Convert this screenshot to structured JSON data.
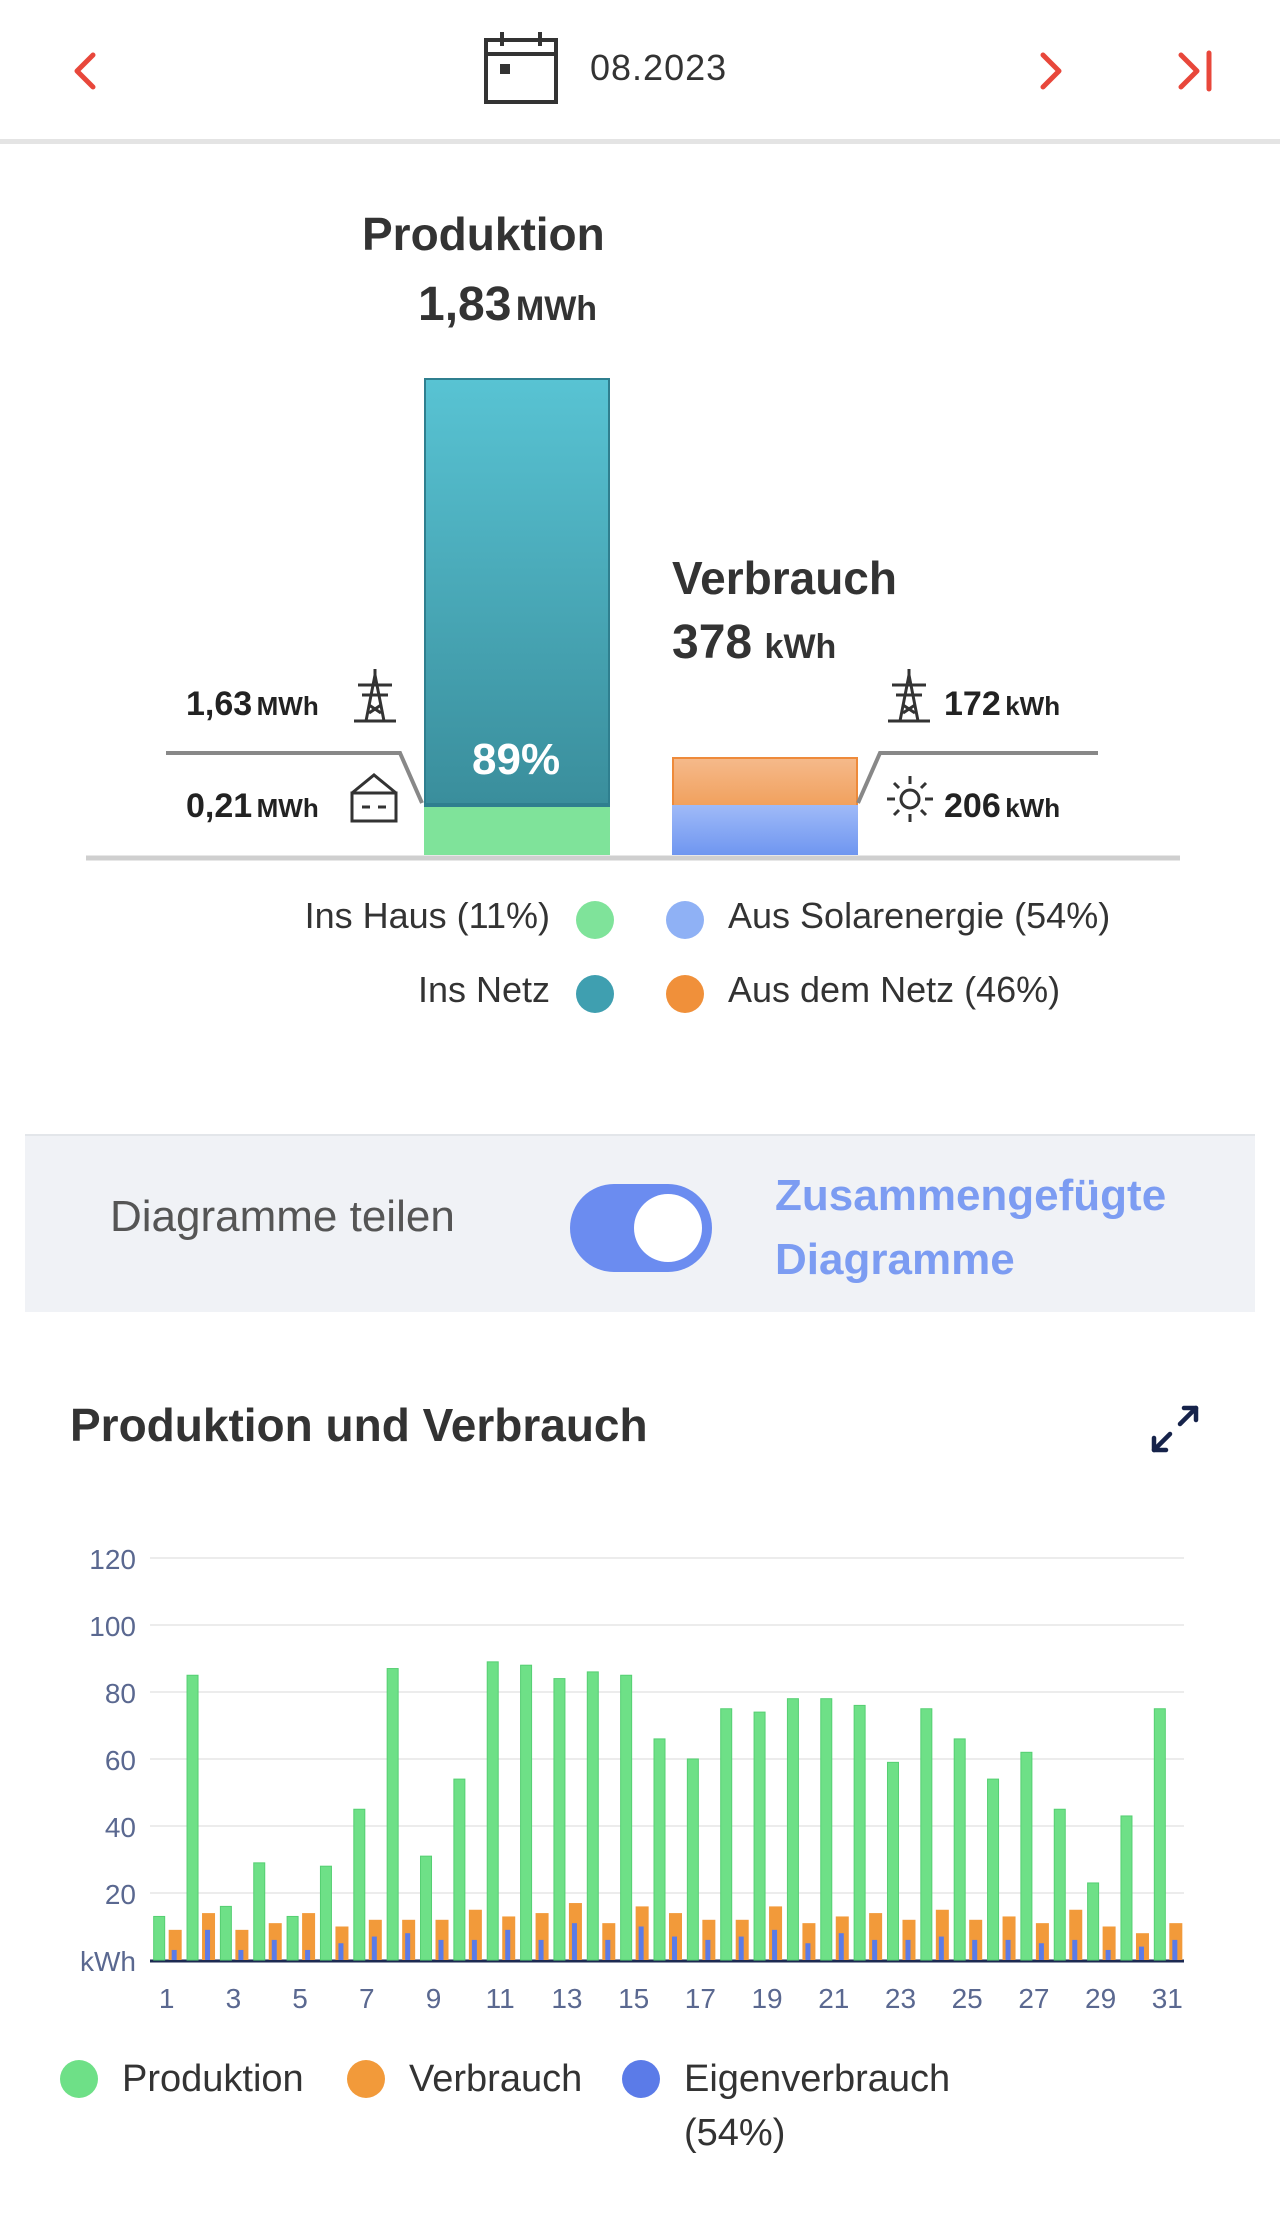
{
  "header": {
    "date": "08.2023",
    "icons": [
      "chevron-left-icon",
      "calendar-icon",
      "chevron-right-icon",
      "skip-to-end-icon"
    ],
    "accent_color": "#e8473b"
  },
  "summary": {
    "production_title": "Produktion",
    "production_value": "1,83",
    "production_unit": "MWh",
    "consumption_title": "Verbrauch",
    "consumption_value": "378",
    "consumption_unit": "kWh",
    "grid_feed_value": "1,63",
    "grid_feed_unit": "MWh",
    "house_value": "0,21",
    "house_unit": "MWh",
    "feed_percent": "89%",
    "from_grid_value": "172",
    "from_grid_unit": "kWh",
    "from_solar_value": "206",
    "from_solar_unit": "kWh",
    "production_split": {
      "ins_haus": 11,
      "ins_netz": 89
    },
    "consumption_split": {
      "aus_solar": 54,
      "aus_netz": 46
    },
    "legend": {
      "ins_haus": "Ins Haus (11%)",
      "ins_netz": "Ins Netz",
      "aus_solar": "Aus Solarenergie (54%)",
      "aus_netz": "Aus dem Netz (46%)"
    },
    "colors": {
      "ins_haus": "#7fe39a",
      "ins_netz": "#3f9fb0",
      "aus_solar": "#8fb1f5",
      "aus_netz": "#f0903a"
    }
  },
  "toggle": {
    "left_label": "Diagramme teilen",
    "right_label_line1": "Zusammengefügte",
    "right_label_line2": "Diagramme",
    "state": "on"
  },
  "chart": {
    "title": "Produktion und Verbrauch",
    "expand_icon": "expand-icon"
  },
  "chart_data": {
    "type": "bar",
    "ylabel": "kWh",
    "ylim": [
      0,
      120
    ],
    "yticks": [
      20,
      40,
      60,
      80,
      100,
      120
    ],
    "xtick_labels": [
      "1",
      "3",
      "5",
      "7",
      "9",
      "11",
      "13",
      "15",
      "17",
      "19",
      "21",
      "23",
      "25",
      "27",
      "29",
      "31"
    ],
    "grid": true,
    "categories": [
      1,
      2,
      3,
      4,
      5,
      6,
      7,
      8,
      9,
      10,
      11,
      12,
      13,
      14,
      15,
      16,
      17,
      18,
      19,
      20,
      21,
      22,
      23,
      24,
      25,
      26,
      27,
      28,
      29,
      30,
      31
    ],
    "series": [
      {
        "name": "Produktion",
        "color": "#6ee087",
        "values": [
          13,
          85,
          16,
          29,
          13,
          28,
          45,
          87,
          31,
          54,
          89,
          88,
          84,
          86,
          85,
          66,
          60,
          75,
          74,
          78,
          78,
          76,
          59,
          75,
          66,
          54,
          62,
          45,
          23,
          43,
          75
        ]
      },
      {
        "name": "Verbrauch",
        "color": "#f29a3a",
        "values": [
          9,
          14,
          9,
          11,
          14,
          10,
          12,
          12,
          12,
          15,
          13,
          14,
          17,
          11,
          16,
          14,
          12,
          12,
          16,
          11,
          13,
          14,
          12,
          15,
          12,
          13,
          11,
          15,
          10,
          8,
          11
        ]
      },
      {
        "name": "Eigenverbrauch (54%)",
        "color": "#5b7be8",
        "values": [
          3,
          9,
          3,
          6,
          3,
          5,
          7,
          8,
          6,
          6,
          9,
          6,
          11,
          6,
          10,
          7,
          6,
          7,
          9,
          5,
          8,
          6,
          6,
          7,
          6,
          6,
          5,
          6,
          3,
          4,
          6
        ]
      }
    ]
  },
  "bottom_legend": {
    "produktion": "Produktion",
    "verbrauch": "Verbrauch",
    "eigenverbrauch_line1": "Eigenverbrauch",
    "eigenverbrauch_line2": "(54%)"
  }
}
